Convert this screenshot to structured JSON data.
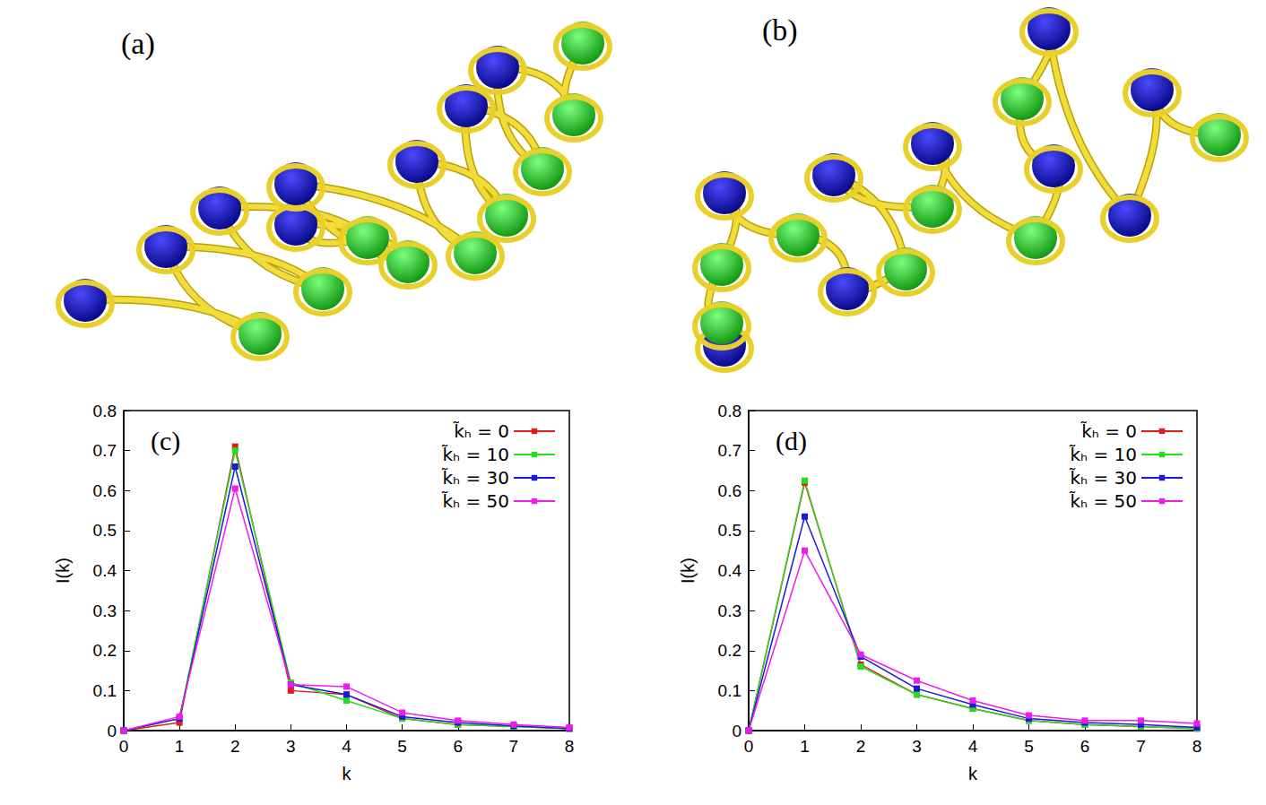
{
  "images": [
    {
      "label": "(a)"
    },
    {
      "label": "(b)"
    }
  ],
  "chart_data": [
    {
      "type": "line",
      "annotation": "(c)",
      "x_label": "k",
      "y_label": "I(k)",
      "x": [
        0,
        1,
        2,
        3,
        4,
        5,
        6,
        7,
        8
      ],
      "xlim": [
        0,
        8
      ],
      "xticks": [
        0,
        1,
        2,
        3,
        4,
        5,
        6,
        7,
        8
      ],
      "ylim": [
        0,
        0.8
      ],
      "yticks": [
        0,
        0.1,
        0.2,
        0.3,
        0.4,
        0.5,
        0.6,
        0.7,
        0.8
      ],
      "legend": "top-right",
      "marker": "square",
      "grid": false,
      "series": [
        {
          "name": "k̃ₕ = 0",
          "color": "#e41a1c",
          "values": [
            0,
            0.02,
            0.71,
            0.1,
            0.09,
            0.03,
            0.015,
            0.01,
            0.005
          ]
        },
        {
          "name": "k̃ₕ = 10",
          "color": "#22e01e",
          "values": [
            0,
            0.03,
            0.7,
            0.12,
            0.075,
            0.03,
            0.015,
            0.01,
            0.005
          ]
        },
        {
          "name": "k̃ₕ = 30",
          "color": "#1a1adc",
          "values": [
            0,
            0.03,
            0.66,
            0.115,
            0.09,
            0.035,
            0.02,
            0.012,
            0.005
          ]
        },
        {
          "name": "k̃ₕ = 50",
          "color": "#ee1aee",
          "values": [
            0,
            0.035,
            0.605,
            0.115,
            0.11,
            0.045,
            0.025,
            0.015,
            0.008
          ]
        }
      ]
    },
    {
      "type": "line",
      "annotation": "(d)",
      "x_label": "k",
      "y_label": "I(k)",
      "x": [
        0,
        1,
        2,
        3,
        4,
        5,
        6,
        7,
        8
      ],
      "xlim": [
        0,
        8
      ],
      "xticks": [
        0,
        1,
        2,
        3,
        4,
        5,
        6,
        7,
        8
      ],
      "ylim": [
        0,
        0.8
      ],
      "yticks": [
        0,
        0.1,
        0.2,
        0.3,
        0.4,
        0.5,
        0.6,
        0.7,
        0.8
      ],
      "legend": "top-right",
      "marker": "square",
      "grid": false,
      "series": [
        {
          "name": "k̃ₕ = 0",
          "color": "#e41a1c",
          "values": [
            0,
            0.62,
            0.165,
            0.09,
            0.055,
            0.025,
            0.015,
            0.01,
            0.005
          ]
        },
        {
          "name": "k̃ₕ = 10",
          "color": "#22e01e",
          "values": [
            0,
            0.625,
            0.16,
            0.09,
            0.055,
            0.025,
            0.015,
            0.01,
            0.005
          ]
        },
        {
          "name": "k̃ₕ = 30",
          "color": "#1a1adc",
          "values": [
            0,
            0.535,
            0.185,
            0.105,
            0.065,
            0.03,
            0.02,
            0.015,
            0.008
          ]
        },
        {
          "name": "k̃ₕ = 50",
          "color": "#ee1aee",
          "values": [
            0,
            0.45,
            0.19,
            0.125,
            0.075,
            0.038,
            0.025,
            0.025,
            0.018
          ]
        }
      ]
    }
  ]
}
